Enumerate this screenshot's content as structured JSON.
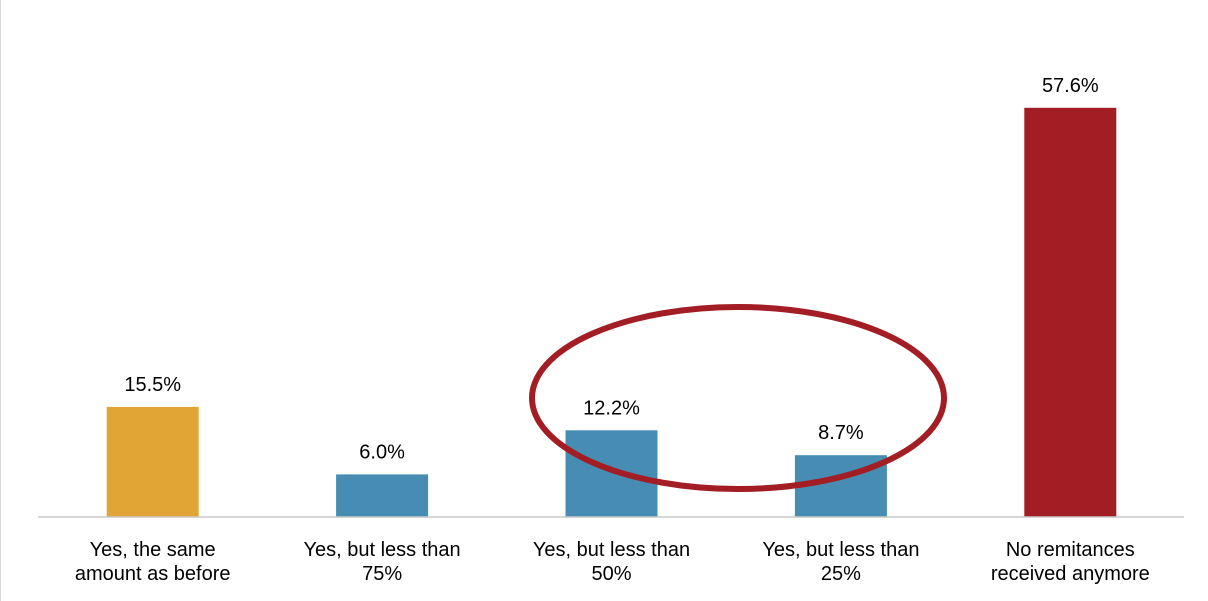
{
  "chart_data": {
    "type": "bar",
    "title": "",
    "xlabel": "",
    "ylabel": "",
    "ylim": [
      0,
      65
    ],
    "grid": false,
    "legend": "none",
    "categories": [
      "Yes, the same\namount as before",
      "Yes, but less than\n75%",
      "Yes, but less than\n50%",
      "Yes, but less than\n25%",
      "No remitances\nreceived anymore"
    ],
    "values": [
      15.5,
      6.0,
      12.2,
      8.7,
      57.6
    ],
    "value_labels": [
      "15.5%",
      "6.0%",
      "12.2%",
      "8.7%",
      "57.6%"
    ],
    "bar_colors": [
      "#e0a535",
      "#468cb3",
      "#468cb3",
      "#468cb3",
      "#a31d24"
    ],
    "annotation": {
      "type": "ellipse",
      "color": "#a31d24",
      "highlights": [
        "Yes, but less than\n50%",
        "Yes, but less than\n25%"
      ]
    }
  }
}
